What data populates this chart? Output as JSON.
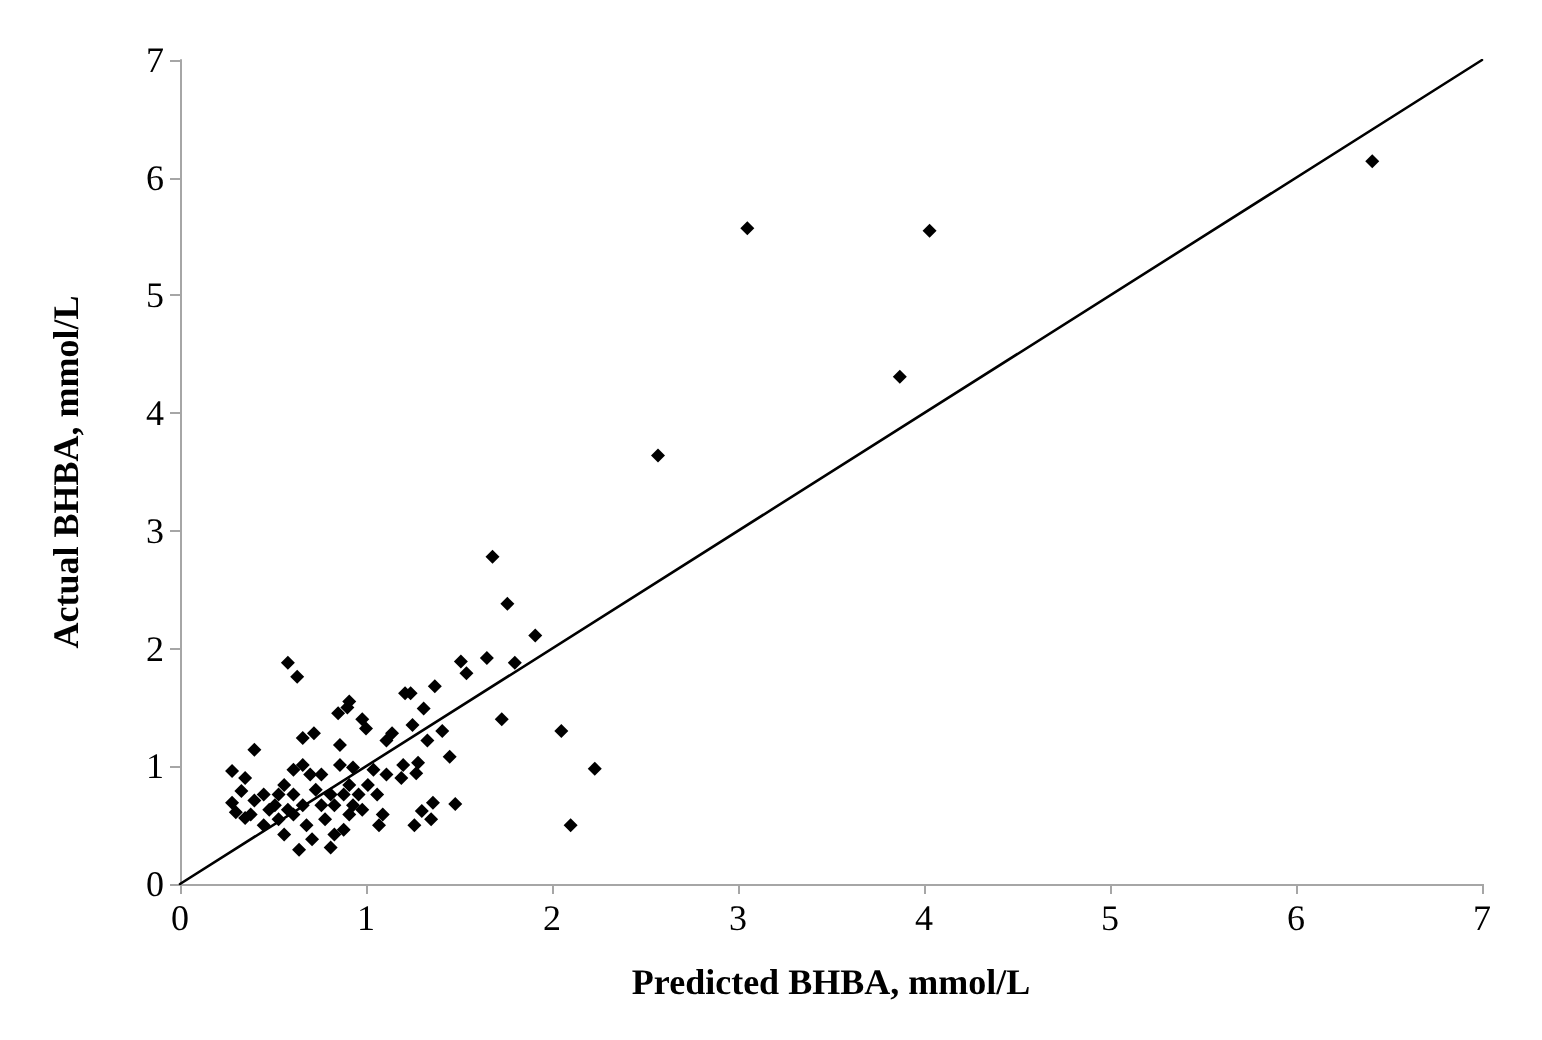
{
  "chart_data": {
    "type": "scatter",
    "xlabel": "Predicted BHBA, mmol/L",
    "ylabel": "Actual BHBA, mmol/L",
    "xlim": [
      0,
      7
    ],
    "xticks": [
      0,
      1,
      2,
      3,
      4,
      5,
      6,
      7
    ],
    "ylim": [
      0,
      7
    ],
    "yticks": [
      0,
      1,
      2,
      3,
      4,
      5,
      6,
      7
    ],
    "grid": false,
    "marker": "diamond",
    "series": [
      {
        "color": "#000000",
        "x": [
          6.41,
          3.05,
          4.03,
          3.87,
          2.57,
          1.68,
          1.76,
          1.91,
          1.8,
          1.51,
          1.65,
          1.54,
          1.73,
          2.05,
          2.23,
          2.1,
          0.58,
          0.63,
          1.48,
          1.45,
          1.37,
          1.41,
          1.31,
          1.21,
          1.24,
          1.36,
          1.35,
          1.26,
          1.3,
          1.27,
          1.28,
          1.33,
          1.25,
          1.19,
          1.2,
          1.11,
          1.14,
          1.07,
          0.9,
          0.85,
          0.91,
          0.98,
          1.0,
          0.86,
          0.72,
          0.66,
          0.4,
          0.28,
          0.33,
          0.28,
          0.3,
          0.35,
          0.64,
          0.81,
          0.35,
          0.45,
          0.53,
          0.58,
          0.61,
          0.61,
          0.66,
          0.7,
          0.73,
          0.76,
          0.78,
          0.83,
          0.88,
          0.91,
          0.91,
          0.93,
          0.96,
          0.98,
          1.01,
          1.04,
          1.06,
          1.09,
          1.11,
          0.51,
          0.45,
          0.4,
          0.56,
          0.68,
          0.71,
          0.56,
          0.86,
          0.81,
          0.76,
          0.83,
          0.88,
          0.93,
          0.66,
          0.61,
          0.48,
          0.38,
          0.53
        ],
        "values": [
          6.14,
          5.57,
          5.55,
          4.31,
          3.64,
          2.78,
          2.38,
          2.11,
          1.88,
          1.89,
          1.92,
          1.79,
          1.4,
          1.3,
          0.98,
          0.5,
          1.88,
          1.76,
          0.68,
          1.08,
          1.68,
          1.3,
          1.49,
          1.62,
          1.62,
          0.69,
          0.55,
          0.5,
          0.62,
          0.94,
          1.03,
          1.22,
          1.35,
          0.9,
          1.01,
          1.22,
          1.28,
          0.5,
          1.5,
          1.45,
          1.55,
          1.4,
          1.32,
          1.18,
          1.28,
          1.24,
          1.14,
          0.96,
          0.79,
          0.69,
          0.61,
          0.9,
          0.29,
          0.31,
          0.56,
          0.5,
          0.55,
          0.63,
          0.76,
          0.97,
          1.01,
          0.93,
          0.8,
          0.67,
          0.55,
          0.42,
          0.46,
          0.59,
          0.84,
          0.99,
          0.76,
          0.63,
          0.84,
          0.97,
          0.76,
          0.59,
          0.93,
          0.67,
          0.76,
          0.71,
          0.84,
          0.5,
          0.38,
          0.42,
          1.01,
          0.76,
          0.93,
          0.67,
          0.76,
          0.67,
          0.67,
          0.59,
          0.63,
          0.59,
          0.76
        ]
      },
      {
        "type": "line",
        "color": "#000000",
        "x": [
          0,
          7
        ],
        "values": [
          0,
          7
        ],
        "marker": "none",
        "line_style": "solid"
      }
    ]
  }
}
